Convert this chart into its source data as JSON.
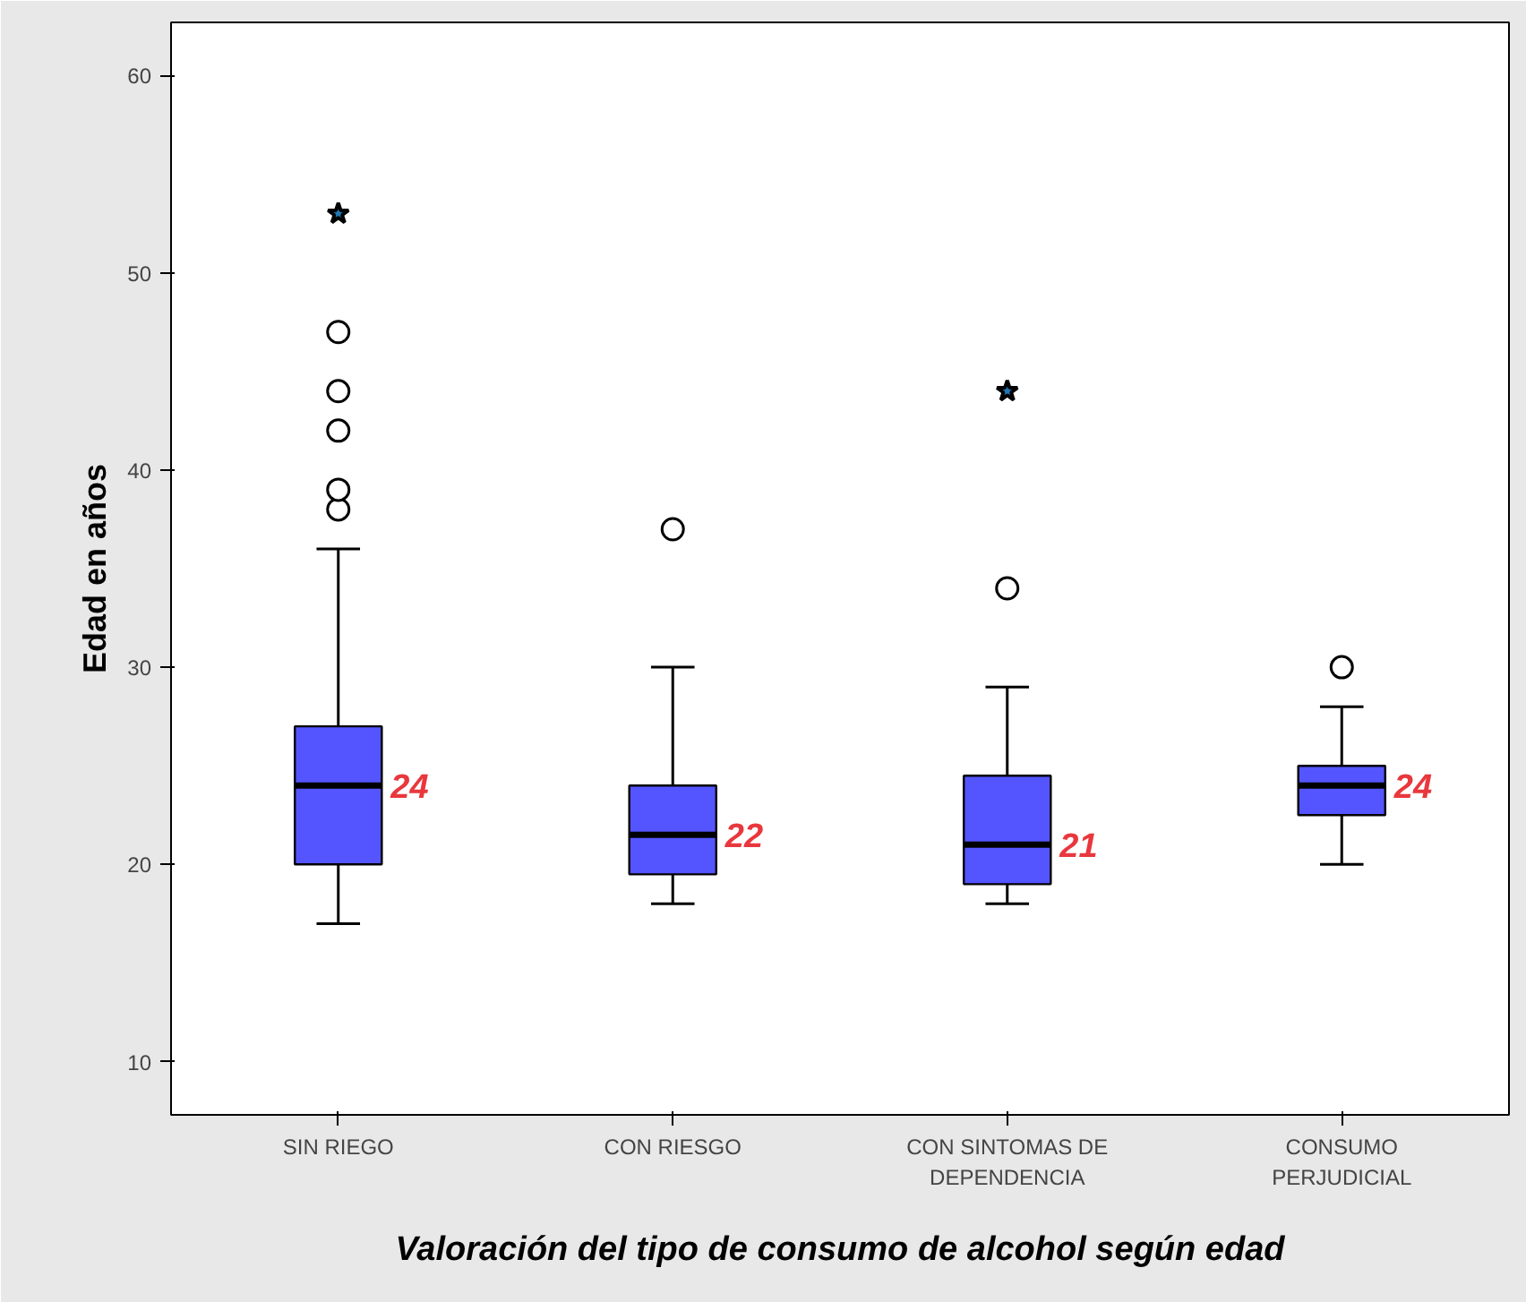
{
  "chart_data": {
    "type": "box",
    "xlabel": "Valoración del tipo de consumo de alcohol según edad",
    "ylabel": "Edad en años",
    "categories": [
      "SIN RIEGO",
      "CON RIESGO",
      "CON SINTOMAS DE\nDEPENDENCIA",
      "CONSUMO\nPERJUDICIAL"
    ],
    "color": "#5555ff",
    "boxes": [
      {
        "low": 17,
        "q1": 20,
        "median": 24,
        "q3": 27,
        "high": 36,
        "outliers": [
          38,
          39,
          42,
          44,
          47
        ]
      },
      {
        "low": 18,
        "q1": 19.5,
        "median": 21.5,
        "q3": 24,
        "high": 30,
        "outliers": [
          37
        ]
      },
      {
        "low": 18,
        "q1": 19,
        "median": 21,
        "q3": 24.5,
        "high": 29,
        "outliers": [
          34
        ]
      },
      {
        "low": 20,
        "q1": 22.5,
        "median": 24,
        "q3": 25,
        "high": 28,
        "outliers": [
          30
        ]
      }
    ],
    "series": [
      {
        "type": "scatter",
        "x": [
          "SIN RIEGO",
          "CON SINTOMAS DE\nDEPENDENCIA"
        ],
        "values": [
          53,
          44
        ],
        "marker": "star",
        "color": "#000000"
      }
    ],
    "annotations": [
      {
        "text": "24",
        "x": "SIN RIEGO",
        "y": 24
      },
      {
        "text": "22",
        "x": "CON RIESGO",
        "y": 21.5
      },
      {
        "text": "21",
        "x": "CON SINTOMAS DE\nDEPENDENCIA",
        "y": 21
      },
      {
        "text": "24",
        "x": "CONSUMO\nPERJUDICIAL",
        "y": 24
      }
    ],
    "ylim": [
      7.3,
      62.7
    ],
    "yticks": [
      10,
      20,
      30,
      40,
      50,
      60
    ],
    "grid": false
  }
}
